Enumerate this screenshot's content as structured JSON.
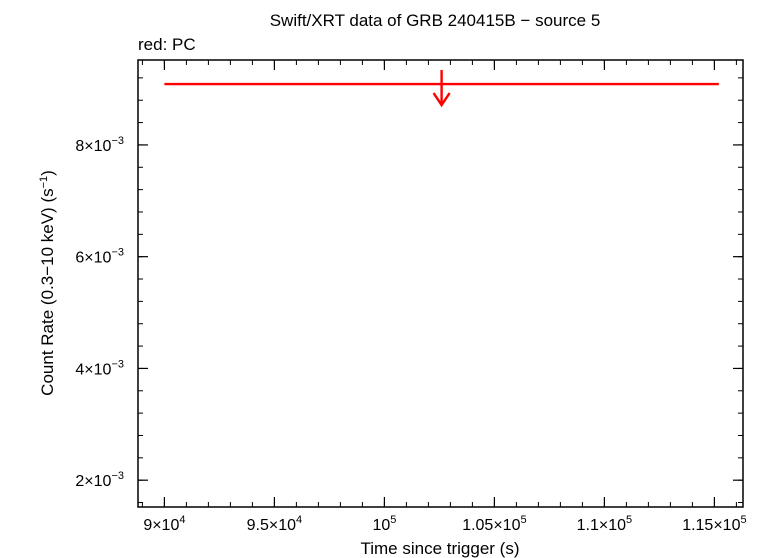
{
  "chart_data": {
    "type": "scatter",
    "title": "Swift/XRT data of GRB 240415B − source 5",
    "subtitle": "red: PC",
    "xlabel": "Time since trigger (s)",
    "ylabel_main": "Count Rate (0.3−10 keV) (s",
    "ylabel_sup": "−1",
    "ylabel_end": ")",
    "xlim": [
      88800,
      116300
    ],
    "ylim": [
      0.00152,
      0.00952
    ],
    "x_ticks": [
      {
        "value": 90000,
        "mantissa": "9×10",
        "exp": "4"
      },
      {
        "value": 95000,
        "mantissa": "9.5×10",
        "exp": "4"
      },
      {
        "value": 100000,
        "mantissa": "10",
        "exp": "5"
      },
      {
        "value": 105000,
        "mantissa": "1.05×10",
        "exp": "5"
      },
      {
        "value": 110000,
        "mantissa": "1.1×10",
        "exp": "5"
      },
      {
        "value": 115000,
        "mantissa": "1.15×10",
        "exp": "5"
      }
    ],
    "x_minor_step": 1000,
    "y_ticks": [
      {
        "value": 0.002,
        "mantissa": "2×10",
        "exp": "−3"
      },
      {
        "value": 0.004,
        "mantissa": "4×10",
        "exp": "−3"
      },
      {
        "value": 0.006,
        "mantissa": "6×10",
        "exp": "−3"
      },
      {
        "value": 0.008,
        "mantissa": "8×10",
        "exp": "−3"
      }
    ],
    "y_minor_step": 0.0004,
    "series": [
      {
        "color": "#ff0000",
        "upper_limits": [
          {
            "x": 102600,
            "x_lo": 90000,
            "x_hi": 115200,
            "y": 0.00909
          }
        ]
      }
    ],
    "grid": false,
    "legend": "top-left"
  }
}
